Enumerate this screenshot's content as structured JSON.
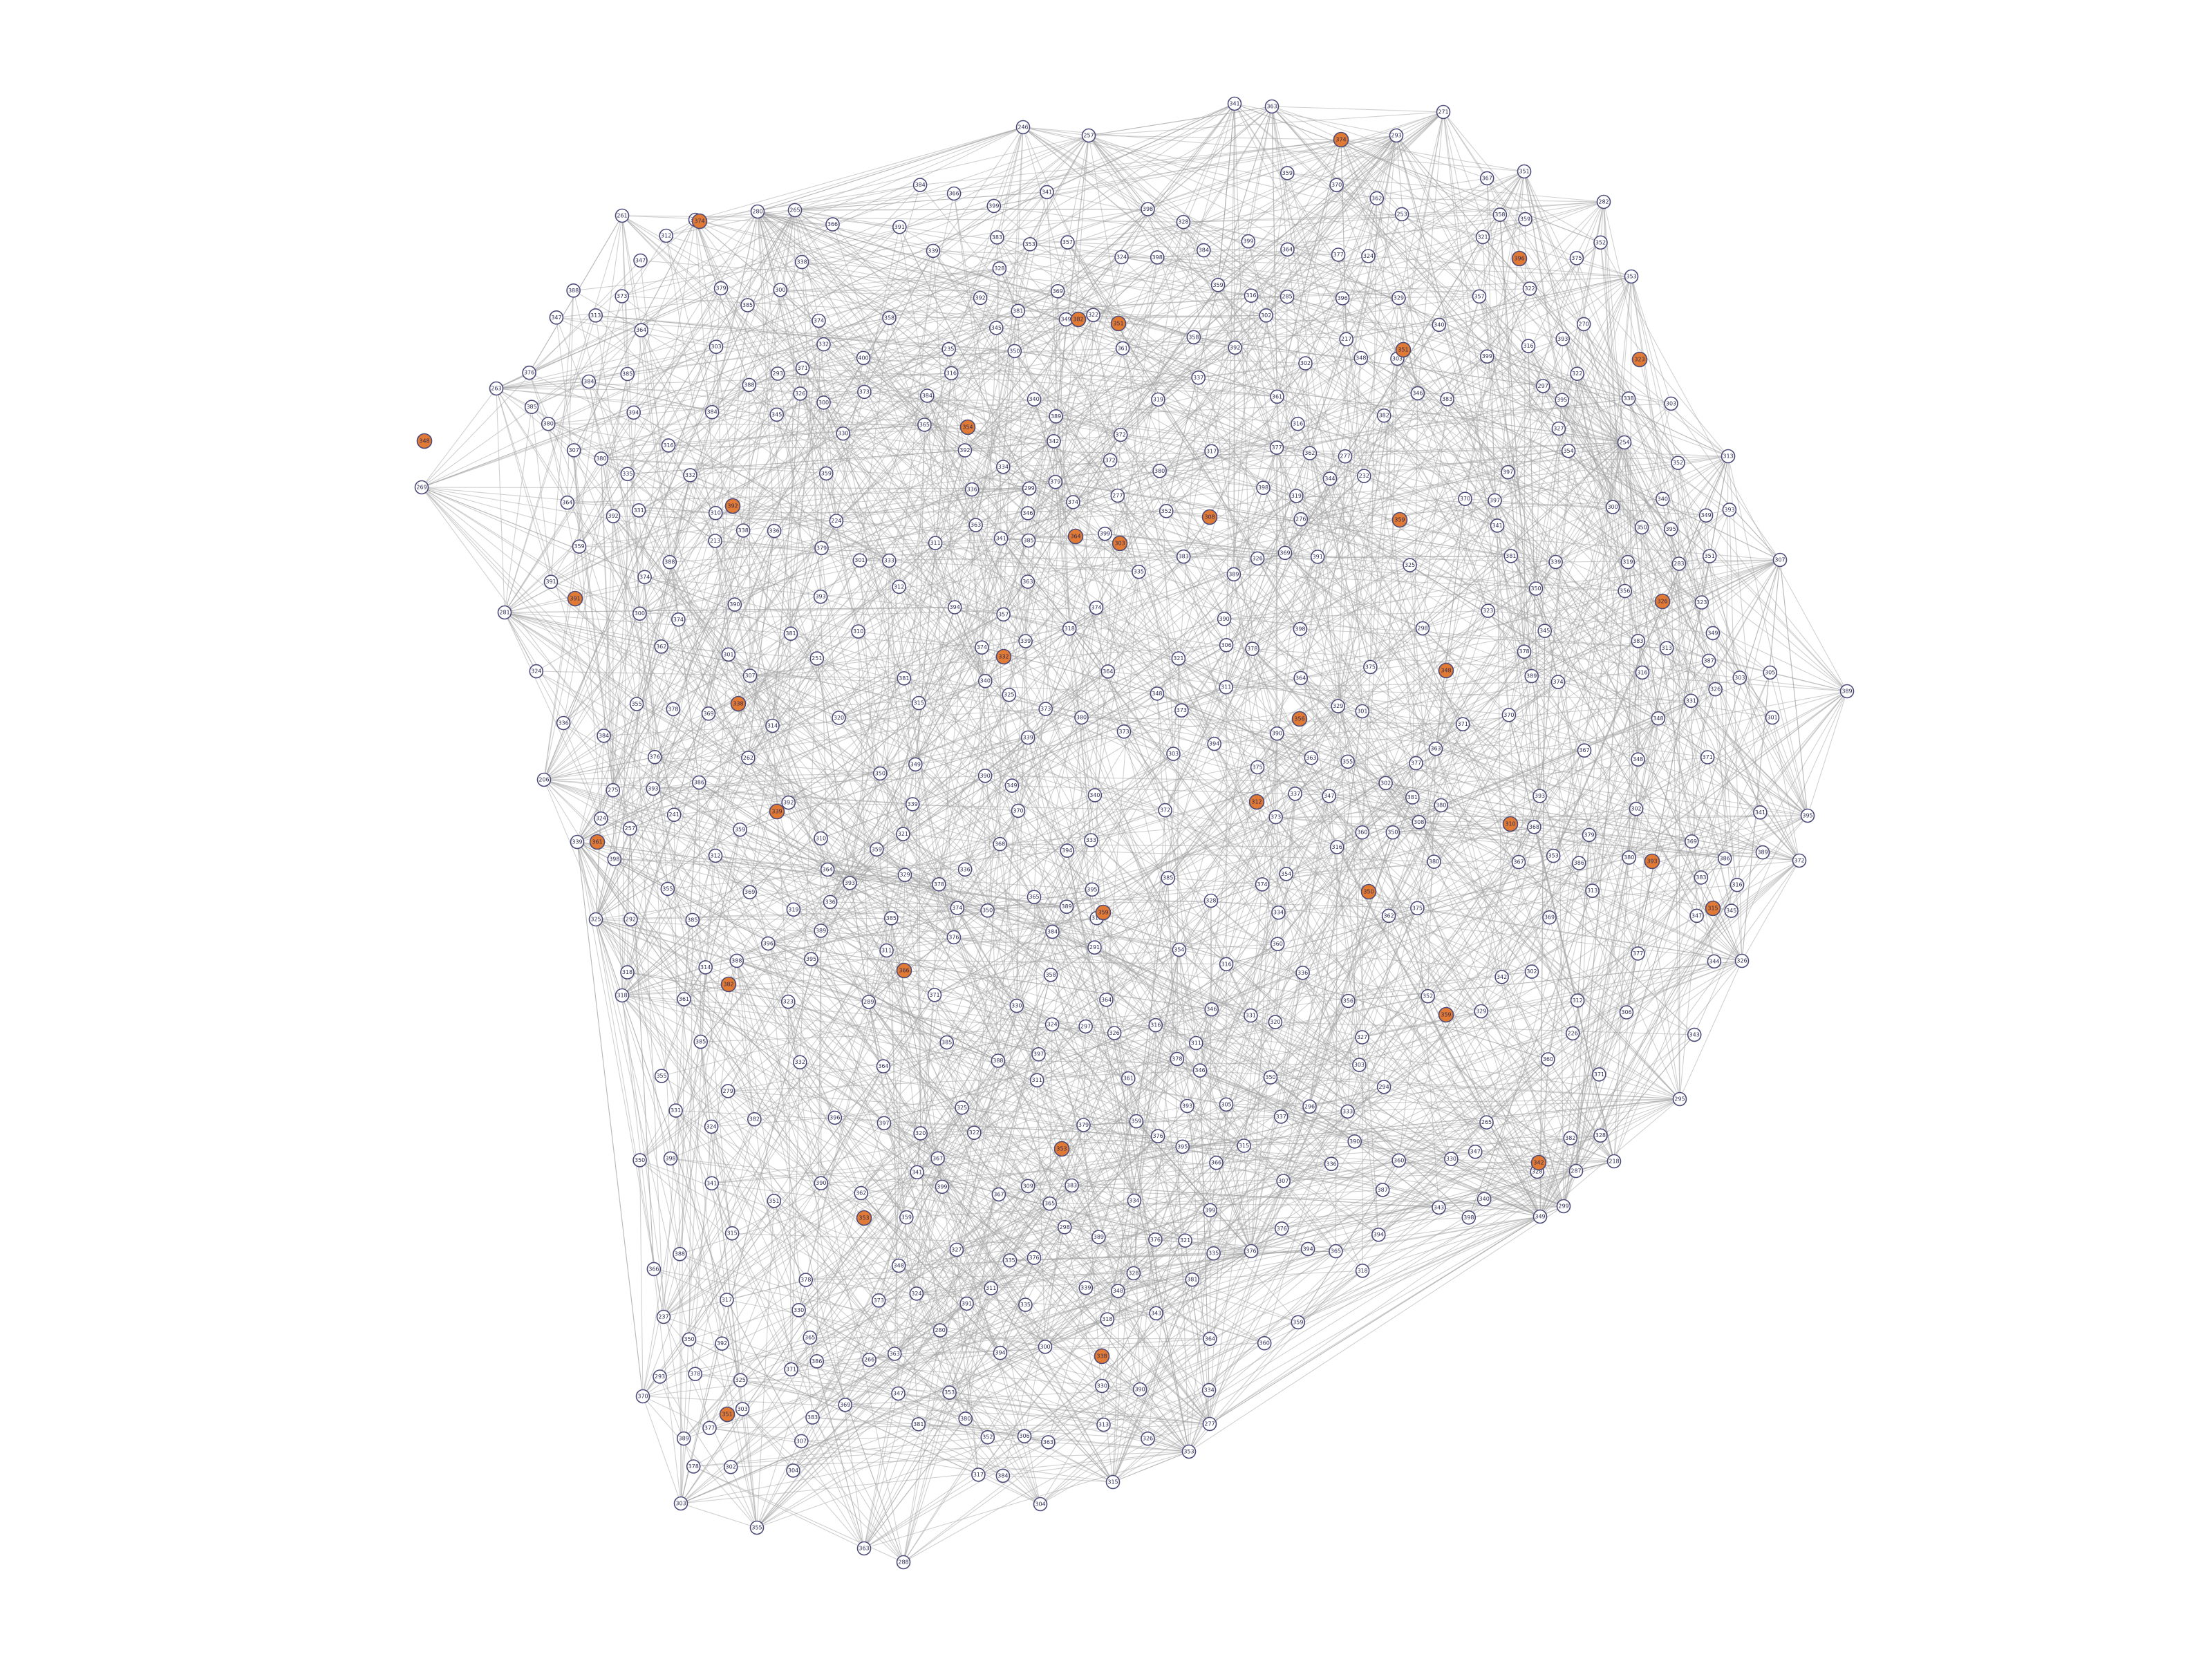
{
  "graph": {
    "colors": {
      "background": "#ffffff",
      "edge": "#a3a3a3",
      "node_fill": "#ffffff",
      "node_highlight_fill": "#e07a35",
      "node_stroke": "#4b4a78",
      "label": "#2d2a55"
    },
    "visible_node_labels": [
      "269",
      "263",
      "261",
      "301",
      "280",
      "265",
      "246",
      "257",
      "341",
      "363",
      "378",
      "293",
      "271",
      "351",
      "282",
      "353",
      "254",
      "313",
      "307",
      "389",
      "395",
      "372",
      "326",
      "295",
      "218",
      "299",
      "287",
      "349",
      "376",
      "277",
      "353",
      "315",
      "304",
      "288",
      "363",
      "355",
      "303",
      "370",
      "237",
      "318",
      "206",
      "339",
      "281",
      "325",
      "309",
      "226",
      "241",
      "366",
      "361",
      "386",
      "338",
      "330",
      "251",
      "217",
      "347",
      "371",
      "306",
      "213",
      "232",
      "392",
      "384",
      "392",
      "365",
      "364",
      "396",
      "298",
      "340",
      "331",
      "357",
      "390",
      "357",
      "307",
      "262",
      "303",
      "321",
      "265",
      "328",
      "397",
      "390",
      "359",
      "305",
      "331",
      "311",
      "294",
      "289",
      "322",
      "321",
      "277",
      "303",
      "394",
      "333",
      "384",
      "363",
      "345",
      "385",
      "350",
      "343",
      "319",
      "279",
      "355",
      "359",
      "352",
      "334",
      "374",
      "355",
      "336",
      "280",
      "312",
      "325",
      "291",
      "338",
      "302",
      "334",
      "283",
      "313",
      "319",
      "383",
      "348",
      "368",
      "346",
      "393",
      "285",
      "327",
      "369",
      "400",
      "349",
      "301",
      "292",
      "276",
      "316",
      "361",
      "300",
      "337",
      "297",
      "317",
      "321",
      "380",
      "323",
      "324",
      "356",
      "311",
      "270",
      "257",
      "379",
      "365",
      "224",
      "351",
      "328",
      "388",
      "235",
      "366",
      "379",
      "275",
      "300",
      "337",
      "347",
      "374",
      "350",
      "369",
      "303",
      "323",
      "388",
      "305",
      "339",
      "363",
      "346",
      "332",
      "381",
      "326",
      "353",
      "301",
      "368",
      "299",
      "382",
      "364",
      "350",
      "373",
      "375",
      "369",
      "307",
      "349",
      "365",
      "355",
      "384",
      "301",
      "354",
      "330",
      "376",
      "395",
      "358",
      "390",
      "371",
      "367",
      "376",
      "398",
      "372",
      "329",
      "314",
      "277",
      "388",
      "380",
      "346",
      "380",
      "342",
      "398",
      "349",
      "296",
      "379",
      "361",
      "335",
      "395",
      "301",
      "350",
      "253",
      "389",
      "336",
      "372",
      "360",
      "376",
      "307",
      "348",
      "266",
      "384",
      "293",
      "367",
      "303",
      "317",
      "336",
      "395",
      "302",
      "304",
      "347",
      "394",
      "350",
      "352",
      "389",
      "333",
      "366",
      "327",
      "297",
      "358",
      "300",
      "354",
      "325",
      "300",
      "358",
      "385",
      "380",
      "350",
      "380",
      "364",
      "316",
      "362",
      "381",
      "351",
      "378",
      "328",
      "339",
      "385",
      "336",
      "393",
      "369",
      "350",
      "360",
      "352",
      "326",
      "379",
      "339",
      "334",
      "328",
      "394",
      "312",
      "397",
      "328",
      "293",
      "350",
      "341",
      "319",
      "359",
      "306",
      "391",
      "320",
      "393",
      "341",
      "331",
      "382",
      "369",
      "396",
      "340",
      "303",
      "377",
      "378",
      "385",
      "381",
      "316",
      "364",
      "386",
      "316",
      "389",
      "349",
      "385",
      "371",
      "332",
      "360",
      "298",
      "377",
      "378",
      "393",
      "389",
      "381",
      "347",
      "345",
      "394",
      "364",
      "329",
      "392",
      "302",
      "373",
      "315",
      "399",
      "372",
      "375",
      "385",
      "383",
      "391",
      "379",
      "316",
      "374",
      "387",
      "371",
      "367",
      "396",
      "394",
      "394",
      "374",
      "322",
      "386",
      "397",
      "300",
      "384",
      "376",
      "359",
      "373",
      "360",
      "341",
      "335",
      "319",
      "303",
      "389",
      "392",
      "399",
      "329",
      "311",
      "310",
      "344",
      "311",
      "378",
      "394",
      "381",
      "373",
      "308",
      "376",
      "371",
      "342",
      "359",
      "399",
      "370",
      "324",
      "374",
      "324",
      "318",
      "359",
      "362",
      "397",
      "377",
      "312",
      "322",
      "393",
      "364",
      "349",
      "385",
      "335",
      "348",
      "398",
      "380",
      "303",
      "320",
      "388",
      "392",
      "302",
      "363",
      "339",
      "398",
      "340",
      "398",
      "398",
      "373",
      "335",
      "377",
      "340",
      "346",
      "302",
      "353",
      "383",
      "343",
      "348",
      "316",
      "361",
      "347",
      "348",
      "362",
      "399",
      "376",
      "302",
      "365",
      "375",
      "381",
      "395",
      "316",
      "328",
      "378",
      "359",
      "373",
      "330",
      "391",
      "359",
      "393",
      "390",
      "378",
      "324",
      "310",
      "390",
      "373",
      "322",
      "323",
      "384",
      "384",
      "326",
      "363",
      "345",
      "377",
      "383",
      "386",
      "398",
      "388",
      "364",
      "367",
      "390",
      "374",
      "383",
      "339",
      "344",
      "385",
      "364",
      "352",
      "392",
      "399",
      "326",
      "314",
      "383",
      "382",
      "316",
      "380",
      "378",
      "337",
      "318",
      "324",
      "348",
      "376",
      "312",
      "363",
      "338",
      "321",
      "371",
      "393",
      "324",
      "334",
      "340",
      "317",
      "341",
      "324",
      "383",
      "311",
      "390",
      "374",
      "354",
      "318",
      "388",
      "339",
      "316",
      "366",
      "306",
      "359",
      "374",
      "381",
      "387",
      "319",
      "318",
      "336",
      "369",
      "384",
      "353",
      "345",
      "325",
      "315",
      "313",
      "327",
      "336",
      "335",
      "389",
      "355",
      "340",
      "370",
      "358",
      "378",
      "375",
      "370",
      "370",
      "326",
      "330",
      "316",
      "399",
      "313",
      "329",
      "364",
      "374",
      "369",
      "307",
      "315",
      "332",
      "310",
      "325",
      "395",
      "367",
      "363",
      "380",
      "347",
      "352",
      "356",
      "330",
      "343",
      "360",
      "311",
      "331",
      "313",
      "341",
      "385",
      "362",
      "391",
      "333",
      "389",
      "336",
      "341",
      "320",
      "389",
      "357",
      "359",
      "350",
      "362",
      "365",
      "374",
      "374",
      "396",
      "348",
      "382",
      "351",
      "351",
      "392",
      "354",
      "308",
      "364",
      "303",
      "359",
      "391",
      "326",
      "332",
      "348",
      "338",
      "356",
      "312",
      "339",
      "361",
      "350",
      "310",
      "393",
      "315",
      "359",
      "382",
      "366",
      "359",
      "353",
      "342",
      "353",
      "338",
      "351",
      "323",
      "317",
      "380",
      "329",
      "357",
      "386",
      "324",
      "309",
      "334",
      "371",
      "337",
      "331",
      "345",
      "335",
      "364",
      "318",
      "325",
      "362",
      "371",
      "310",
      "348",
      "337",
      "384",
      "317",
      "392",
      "370",
      "391",
      "376",
      "337",
      "353",
      "383",
      "330",
      "379",
      "337",
      "366",
      "377",
      "371",
      "386",
      "318",
      "330",
      "355",
      "356",
      "314",
      "317",
      "399",
      "312",
      "362",
      "332",
      "383",
      "366",
      "359",
      "361",
      "372",
      "368",
      "321",
      "318",
      "360",
      "385",
      "368",
      "358",
      "337",
      "396",
      "392",
      "363",
      "398",
      "395",
      "391",
      "346",
      "354",
      "343",
      "364",
      "371",
      "367",
      "317",
      "357",
      "324",
      "386",
      "377",
      "382",
      "323",
      "350",
      "319",
      "314",
      "373",
      "362",
      "311",
      "393",
      "386",
      "344",
      "398",
      "391",
      "317",
      "347",
      "362",
      "365",
      "326",
      "397",
      "343",
      "381",
      "308",
      "389",
      "316"
    ]
  }
}
